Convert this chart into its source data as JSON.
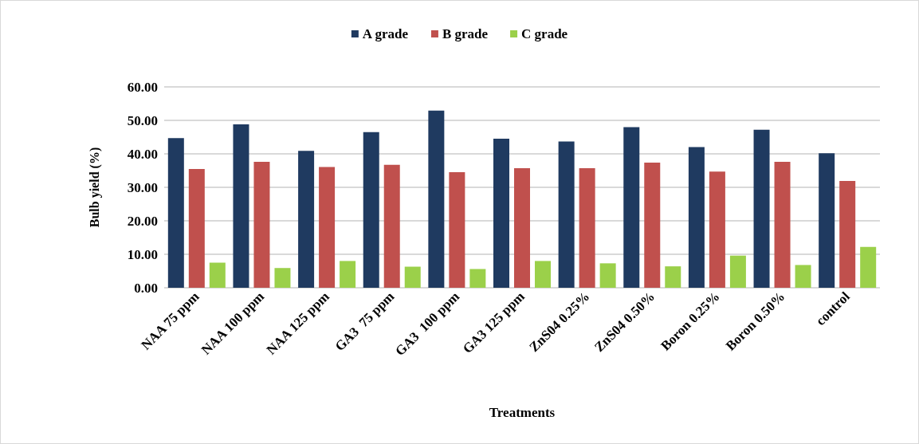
{
  "chart_data": {
    "type": "bar",
    "xlabel": "Treatments",
    "ylabel": "Bulb yield (%)",
    "categories": [
      "NAA 75 ppm",
      "NAA 100 ppm",
      "NAA 125 ppm",
      "GA3  75 ppm",
      "GA3  100 ppm",
      "GA3 125 ppm",
      "ZnS04 0.25%",
      "ZnS04 0.50%",
      "Boron 0.25%",
      "Boron 0.50%",
      "control"
    ],
    "series": [
      {
        "name": "A grade",
        "color": "#1f3a60",
        "values": [
          44.7,
          48.8,
          40.9,
          46.5,
          52.9,
          44.5,
          43.7,
          48.0,
          42.0,
          47.2,
          40.2
        ]
      },
      {
        "name": "B grade",
        "color": "#c0504d",
        "values": [
          35.5,
          37.6,
          36.1,
          36.7,
          34.5,
          35.7,
          35.7,
          37.4,
          34.7,
          37.6,
          31.9
        ]
      },
      {
        "name": "C grade",
        "color": "#9bd04a",
        "values": [
          7.5,
          5.9,
          8.0,
          6.3,
          5.6,
          8.0,
          7.3,
          6.4,
          9.6,
          6.8,
          12.2
        ]
      }
    ],
    "ylim": [
      0,
      60
    ],
    "yticks": [
      {
        "value": 0,
        "label": "0.00"
      },
      {
        "value": 10,
        "label": "10.00"
      },
      {
        "value": 20,
        "label": "20.00"
      },
      {
        "value": 30,
        "label": "30.00"
      },
      {
        "value": 40,
        "label": "40.00"
      },
      {
        "value": 50,
        "label": "50.00"
      },
      {
        "value": 60,
        "label": "60.00"
      }
    ],
    "grid": "y",
    "legend": "top"
  }
}
